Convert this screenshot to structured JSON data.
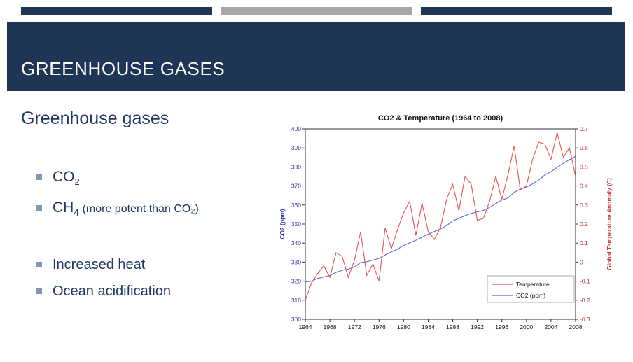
{
  "header": {
    "title": "GREENHOUSE GASES"
  },
  "content": {
    "heading": "Greenhouse gases",
    "bullets_primary": [
      {
        "text": "CO",
        "sub": "2",
        "note": ""
      },
      {
        "text": "CH",
        "sub": "4",
        "note": "(more potent than CO₂)"
      }
    ],
    "bullets_secondary": [
      {
        "text": "Increased heat"
      },
      {
        "text": "Ocean acidification"
      }
    ]
  },
  "colors": {
    "navy_bar": "#1f3556",
    "gray_bar": "#a6a6a6",
    "body_text": "#1f3864",
    "bullet_square": "#8496b0"
  },
  "chart_data": {
    "type": "line",
    "title": "CO2 & Temperature (1964 to 2008)",
    "y_left_label": "CO2 (ppm)",
    "y_right_label": "Global Temperature Anomaly (C)",
    "x_range": [
      1964,
      2008
    ],
    "y_left_range": [
      300,
      400
    ],
    "y_right_range": [
      -0.3,
      0.7
    ],
    "x_ticks": [
      1964,
      1968,
      1972,
      1976,
      1980,
      1984,
      1988,
      1992,
      1996,
      2000,
      2004,
      2008
    ],
    "y_left_ticks": [
      300,
      310,
      320,
      330,
      340,
      350,
      360,
      370,
      380,
      390,
      400
    ],
    "y_right_ticks": [
      "-0.3",
      "-0.2",
      "-0.1",
      "0",
      "0.1",
      "0.2",
      "0.3",
      "0.4",
      "0.5",
      "0.6",
      "0.7"
    ],
    "left_axis_color": "#3333bb",
    "right_axis_color": "#cc3333",
    "grid": false,
    "legend_position": "bottom-right-inside",
    "years": [
      1964,
      1965,
      1966,
      1967,
      1968,
      1969,
      1970,
      1971,
      1972,
      1973,
      1974,
      1975,
      1976,
      1977,
      1978,
      1979,
      1980,
      1981,
      1982,
      1983,
      1984,
      1985,
      1986,
      1987,
      1988,
      1989,
      1990,
      1991,
      1992,
      1993,
      1994,
      1995,
      1996,
      1997,
      1998,
      1999,
      2000,
      2001,
      2002,
      2003,
      2004,
      2005,
      2006,
      2007,
      2008
    ],
    "series": [
      {
        "name": "Temperature",
        "axis": "right",
        "color": "#e8534e",
        "values": [
          -0.2,
          -0.11,
          -0.06,
          -0.02,
          -0.08,
          0.05,
          0.03,
          -0.08,
          0.01,
          0.16,
          -0.07,
          -0.01,
          -0.1,
          0.18,
          0.07,
          0.17,
          0.26,
          0.32,
          0.14,
          0.31,
          0.16,
          0.12,
          0.18,
          0.33,
          0.41,
          0.27,
          0.45,
          0.41,
          0.22,
          0.23,
          0.32,
          0.45,
          0.33,
          0.46,
          0.61,
          0.38,
          0.4,
          0.54,
          0.63,
          0.62,
          0.54,
          0.68,
          0.55,
          0.6,
          0.45
        ]
      },
      {
        "name": "CO2 (ppm)",
        "axis": "left",
        "color": "#6066cc",
        "values": [
          319.6,
          320.0,
          321.4,
          322.2,
          323.0,
          324.6,
          325.7,
          326.3,
          327.5,
          329.7,
          330.2,
          331.1,
          332.0,
          333.8,
          335.4,
          336.8,
          338.8,
          340.1,
          341.5,
          343.1,
          344.7,
          346.1,
          347.4,
          349.2,
          351.6,
          353.1,
          354.4,
          355.6,
          356.4,
          357.1,
          358.8,
          360.8,
          362.6,
          363.7,
          366.7,
          368.4,
          369.5,
          371.1,
          373.2,
          375.8,
          377.5,
          379.8,
          381.9,
          383.8,
          385.6
        ]
      }
    ]
  }
}
